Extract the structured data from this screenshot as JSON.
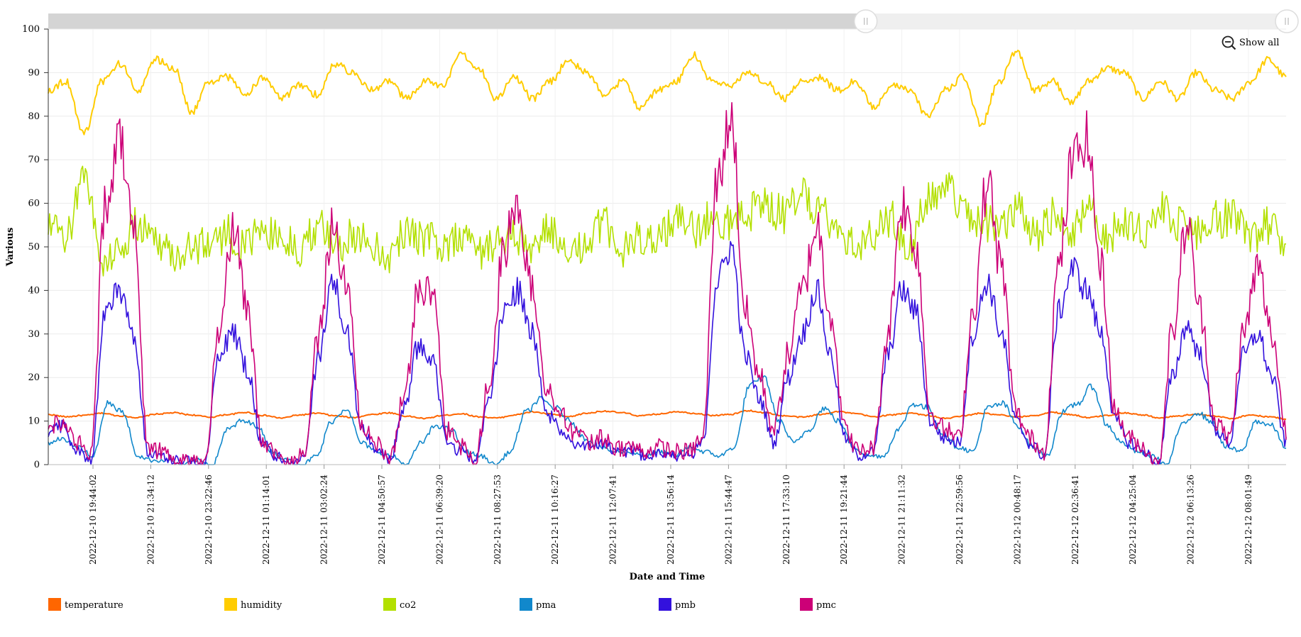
{
  "chart_data": {
    "type": "line",
    "title": "",
    "xlabel": "Date and Time",
    "ylabel": "Various",
    "ylim": [
      0,
      100
    ],
    "yticks": [
      0,
      10,
      20,
      30,
      40,
      50,
      60,
      70,
      80,
      90,
      100
    ],
    "grid": true,
    "x_tick_labels": [
      "2022-12-10 19:44:02",
      "2022-12-10 21:34:12",
      "2022-12-10 23:22:46",
      "2022-12-11 01:14:01",
      "2022-12-11 03:02:24",
      "2022-12-11 04:50:57",
      "2022-12-11 06:39:20",
      "2022-12-11 08:27:53",
      "2022-12-11 10:16:27",
      "2022-12-11 12:07:41",
      "2022-12-11 13:56:14",
      "2022-12-11 15:44:47",
      "2022-12-11 17:33:10",
      "2022-12-11 19:21:44",
      "2022-12-11 21:11:32",
      "2022-12-11 22:59:56",
      "2022-12-12 00:48:17",
      "2022-12-12 02:36:41",
      "2022-12-12 04:25:04",
      "2022-12-12 06:13:26",
      "2022-12-12 08:01:49"
    ],
    "legend_position": "bottom-left",
    "series": [
      {
        "name": "temperature",
        "color": "#ff6600",
        "values": [
          11.5,
          11.0,
          11.3,
          11.8,
          11.2,
          10.8,
          11.6,
          11.9,
          11.4,
          10.9,
          11.5,
          12.0,
          11.3,
          10.7,
          11.4,
          11.8,
          11.2,
          10.8,
          11.5,
          11.9,
          11.1,
          10.6,
          11.3,
          11.7,
          11.0,
          10.7,
          11.4,
          12.1,
          11.6,
          11.0,
          11.8,
          12.3,
          11.9,
          11.2,
          11.6,
          12.2,
          11.8,
          11.3,
          11.5,
          12.4,
          11.9,
          11.2,
          10.9,
          11.5,
          12.2,
          11.7,
          11.0,
          11.4,
          11.9,
          11.3,
          10.6,
          11.2,
          11.8,
          11.4,
          10.9,
          11.3,
          12.0,
          11.5,
          10.8,
          11.3,
          11.9,
          11.4,
          10.7,
          11.2,
          11.6,
          11.1,
          10.6,
          11.4,
          11.0,
          10.5
        ]
      },
      {
        "name": "humidity",
        "color": "#ffcc00",
        "values": [
          86,
          88,
          76,
          88,
          92,
          86,
          93,
          91,
          81,
          88,
          89,
          85,
          89,
          84,
          87,
          85,
          92,
          90,
          86,
          88,
          84,
          88,
          87,
          94,
          91,
          84,
          89,
          84,
          88,
          93,
          90,
          85,
          88,
          82,
          86,
          88,
          94,
          88,
          87,
          90,
          88,
          84,
          88,
          89,
          86,
          88,
          82,
          87,
          86,
          80,
          86,
          89,
          78,
          88,
          95,
          86,
          88,
          83,
          88,
          91,
          90,
          84,
          88,
          84,
          90,
          86,
          84,
          88,
          93,
          89
        ]
      },
      {
        "name": "co2",
        "color": "#b3e000",
        "values": [
          54,
          52,
          68,
          46,
          50,
          55,
          52,
          48,
          50,
          51,
          53,
          50,
          54,
          52,
          49,
          55,
          50,
          53,
          51,
          48,
          54,
          52,
          50,
          53,
          49,
          51,
          52,
          50,
          54,
          47,
          51,
          55,
          49,
          52,
          53,
          56,
          54,
          57,
          56,
          58,
          60,
          57,
          62,
          59,
          55,
          50,
          53,
          56,
          50,
          60,
          64,
          58,
          56,
          55,
          58,
          53,
          57,
          54,
          58,
          52,
          56,
          54,
          59,
          55,
          53,
          56,
          57,
          52,
          55,
          50
        ]
      },
      {
        "name": "pma",
        "color": "#1188cc",
        "values": [
          5,
          6,
          4,
          2,
          14,
          12,
          2,
          1,
          1,
          0,
          1,
          0,
          8,
          10,
          9,
          3,
          1,
          0,
          2,
          10,
          13,
          5,
          3,
          2,
          0,
          5,
          9,
          8,
          3,
          2,
          0,
          3,
          12,
          15,
          13,
          10,
          6,
          4,
          3,
          3,
          2,
          3,
          2,
          4,
          3,
          2,
          4,
          18,
          20,
          10,
          5,
          8,
          13,
          10,
          4,
          2,
          2,
          8,
          14,
          13,
          7,
          4,
          3,
          13,
          14,
          9,
          4,
          2,
          12,
          14,
          18,
          9,
          5,
          3,
          2,
          0,
          9,
          12,
          10,
          4,
          3,
          10,
          9,
          4
        ]
      },
      {
        "name": "pmb",
        "color": "#3311dd",
        "values": [
          8,
          9,
          3,
          1,
          35,
          40,
          30,
          3,
          2,
          1,
          1,
          0,
          26,
          30,
          22,
          5,
          2,
          0,
          2,
          25,
          42,
          30,
          8,
          4,
          1,
          13,
          27,
          25,
          5,
          3,
          1,
          15,
          35,
          40,
          30,
          12,
          8,
          5,
          4,
          5,
          3,
          3,
          2,
          3,
          2,
          2,
          5,
          42,
          50,
          25,
          15,
          5,
          20,
          30,
          40,
          25,
          6,
          2,
          3,
          25,
          40,
          35,
          10,
          6,
          5,
          30,
          42,
          30,
          10,
          5,
          2,
          35,
          45,
          40,
          30,
          10,
          5,
          3,
          0,
          20,
          32,
          25,
          8,
          5,
          25,
          30,
          20,
          5
        ]
      },
      {
        "name": "pmc",
        "color": "#cc0077",
        "values": [
          9,
          10,
          5,
          2,
          60,
          75,
          55,
          4,
          3,
          1,
          1,
          0,
          30,
          55,
          35,
          6,
          2,
          0,
          3,
          30,
          55,
          40,
          10,
          5,
          1,
          15,
          40,
          40,
          8,
          4,
          1,
          20,
          50,
          60,
          40,
          18,
          12,
          7,
          5,
          6,
          4,
          4,
          3,
          4,
          3,
          3,
          6,
          65,
          80,
          35,
          20,
          8,
          25,
          40,
          55,
          35,
          8,
          3,
          4,
          30,
          60,
          50,
          12,
          8,
          6,
          35,
          65,
          45,
          12,
          6,
          3,
          45,
          70,
          75,
          45,
          12,
          6,
          4,
          0,
          30,
          55,
          35,
          10,
          6,
          30,
          45,
          30,
          8
        ]
      }
    ]
  },
  "legend": {
    "items": [
      "temperature",
      "humidity",
      "co2",
      "pma",
      "pmb",
      "pmc"
    ]
  },
  "controls": {
    "show_all_label": "Show all",
    "range_selection_fraction": [
      0.0,
      0.66
    ]
  }
}
